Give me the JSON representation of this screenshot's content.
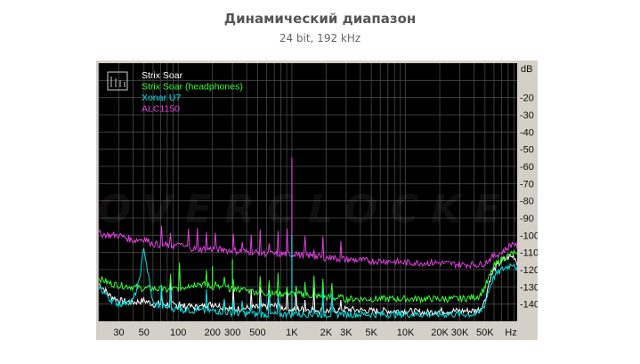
{
  "title": "Динамический диапазон",
  "subtitle": "24 bit, 192 kHz",
  "watermark": "OVERCLOCKERS.UA",
  "legend_icon": "spectrum-icon",
  "colors": {
    "background": "#000000",
    "grid": "#4a4a4a",
    "frame": "#d4d0c8"
  },
  "chart_data": {
    "type": "line",
    "title": "Динамический диапазон",
    "subtitle": "24 bit, 192 kHz",
    "x_scale": "log",
    "xlim": [
      20,
      96000
    ],
    "ylim": [
      -150,
      0
    ],
    "y_unit": "dB",
    "x_unit": "Hz",
    "grid": true,
    "legend": "top-left",
    "x_ticks": [
      {
        "v": 30,
        "label": "30"
      },
      {
        "v": 50,
        "label": "50"
      },
      {
        "v": 100,
        "label": "100"
      },
      {
        "v": 200,
        "label": "200"
      },
      {
        "v": 300,
        "label": "300"
      },
      {
        "v": 500,
        "label": "500"
      },
      {
        "v": 1000,
        "label": "1K"
      },
      {
        "v": 2000,
        "label": "2K"
      },
      {
        "v": 3000,
        "label": "3K"
      },
      {
        "v": 5000,
        "label": "5K"
      },
      {
        "v": 10000,
        "label": "10K"
      },
      {
        "v": 20000,
        "label": "20K"
      },
      {
        "v": 30000,
        "label": "30K"
      },
      {
        "v": 50000,
        "label": "50K"
      }
    ],
    "y_ticks": [
      {
        "v": -20,
        "label": "-20"
      },
      {
        "v": -30,
        "label": "-30"
      },
      {
        "v": -40,
        "label": "-40"
      },
      {
        "v": -50,
        "label": "-50"
      },
      {
        "v": -60,
        "label": "-60"
      },
      {
        "v": -70,
        "label": "-70"
      },
      {
        "v": -80,
        "label": "-80"
      },
      {
        "v": -90,
        "label": "-90"
      },
      {
        "v": -100,
        "label": "-100"
      },
      {
        "v": -110,
        "label": "-110"
      },
      {
        "v": -120,
        "label": "-120"
      },
      {
        "v": -130,
        "label": "-130"
      },
      {
        "v": -140,
        "label": "-140"
      }
    ],
    "series": [
      {
        "name": "Strix Soar",
        "color": "#ffffff",
        "x": [
          20,
          25,
          30,
          40,
          50,
          60,
          80,
          100,
          150,
          200,
          300,
          500,
          700,
          1000,
          1500,
          2000,
          3000,
          5000,
          7000,
          10000,
          15000,
          20000,
          30000,
          40000,
          45000,
          50000,
          55000,
          60000,
          70000,
          80000,
          90000,
          96000
        ],
        "y": [
          -128,
          -135,
          -138,
          -139,
          -138,
          -140,
          -140,
          -141,
          -142,
          -140,
          -143,
          -142,
          -141,
          -143,
          -143,
          -144,
          -143,
          -144,
          -144,
          -144,
          -145,
          -144,
          -144,
          -144,
          -143,
          -138,
          -126,
          -120,
          -115,
          -113,
          -112,
          -116
        ]
      },
      {
        "name": "Strix Soar (headphones)",
        "color": "#33ff33",
        "x": [
          20,
          25,
          30,
          40,
          50,
          60,
          80,
          100,
          150,
          200,
          300,
          500,
          700,
          1000,
          1500,
          2000,
          3000,
          5000,
          7000,
          10000,
          15000,
          20000,
          30000,
          40000,
          45000,
          50000,
          55000,
          60000,
          70000,
          80000,
          90000,
          96000
        ],
        "y": [
          -125,
          -128,
          -129,
          -130,
          -131,
          -131,
          -132,
          -131,
          -128,
          -130,
          -131,
          -133,
          -134,
          -134,
          -135,
          -136,
          -137,
          -137,
          -137,
          -137,
          -137,
          -137,
          -137,
          -136,
          -135,
          -130,
          -124,
          -118,
          -114,
          -112,
          -110,
          -113
        ]
      },
      {
        "name": "Xonar U7",
        "color": "#00e5e5",
        "x": [
          20,
          25,
          30,
          40,
          45,
          50,
          55,
          60,
          80,
          100,
          150,
          200,
          300,
          500,
          700,
          1000,
          1500,
          2000,
          3000,
          5000,
          7000,
          10000,
          15000,
          20000,
          30000,
          40000,
          45000,
          50000,
          55000,
          60000,
          70000,
          80000,
          90000,
          96000
        ],
        "y": [
          -130,
          -137,
          -140,
          -138,
          -128,
          -107,
          -125,
          -140,
          -142,
          -143,
          -144,
          -144,
          -145,
          -146,
          -146,
          -146,
          -146,
          -146,
          -146,
          -146,
          -146,
          -146,
          -146,
          -146,
          -146,
          -146,
          -145,
          -140,
          -130,
          -124,
          -120,
          -118,
          -116,
          -120
        ]
      },
      {
        "name": "ALC1150",
        "color": "#e040e0",
        "x": [
          20,
          25,
          30,
          40,
          50,
          60,
          80,
          100,
          150,
          200,
          300,
          500,
          700,
          1000,
          1500,
          2000,
          3000,
          5000,
          7000,
          10000,
          15000,
          20000,
          30000,
          40000,
          45000,
          50000,
          55000,
          60000,
          70000,
          80000,
          90000,
          96000
        ],
        "y": [
          -99,
          -100,
          -100,
          -103,
          -102,
          -105,
          -106,
          -106,
          -108,
          -108,
          -109,
          -110,
          -111,
          -111,
          -112,
          -113,
          -114,
          -115,
          -115,
          -116,
          -116,
          -116,
          -117,
          -117,
          -117,
          -116,
          -114,
          -112,
          -110,
          -107,
          -104,
          -107
        ]
      }
    ],
    "spikes": [
      {
        "series": "ALC1150",
        "x": 1000,
        "y": -55
      },
      {
        "series": "Xonar U7",
        "x": 1000,
        "y": -100
      },
      {
        "series": "Strix Soar (headphones)",
        "x": 200,
        "y": -118
      },
      {
        "series": "Strix Soar (headphones)",
        "x": 300,
        "y": -114
      }
    ]
  }
}
